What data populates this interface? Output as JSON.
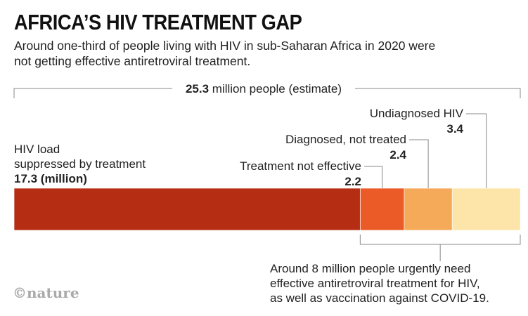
{
  "title": "AFRICA’S HIV TREATMENT GAP",
  "subtitle": "Around one-third of people living with HIV in sub-Saharan Africa in 2020 were not getting effective antiretroviral treatment.",
  "logo": "©nature",
  "chart_data": {
    "type": "bar",
    "orientation": "horizontal-stacked",
    "total": {
      "value": "25.3",
      "label": "million people (estimate)"
    },
    "unit": "million",
    "categories": [
      "HIV load suppressed by treatment",
      "Treatment not effective",
      "Diagnosed, not treated",
      "Undiagnosed HIV"
    ],
    "values": [
      17.3,
      2.2,
      2.4,
      3.4
    ],
    "value_labels": [
      "17.3 (million)",
      "2.2",
      "2.4",
      "3.4"
    ],
    "label_lines": [
      [
        "HIV load",
        "suppressed by treatment"
      ],
      [
        "Treatment not effective"
      ],
      [
        "Diagnosed, not treated"
      ],
      [
        "Undiagnosed HIV"
      ]
    ],
    "colors": [
      "#b52d12",
      "#ea5b27",
      "#f5aa5a",
      "#fde4a8"
    ],
    "annotation": [
      "Around 8 million people urgently need",
      "effective antiretroviral treatment for HIV,",
      "as well as vaccination against COVID-19."
    ]
  }
}
